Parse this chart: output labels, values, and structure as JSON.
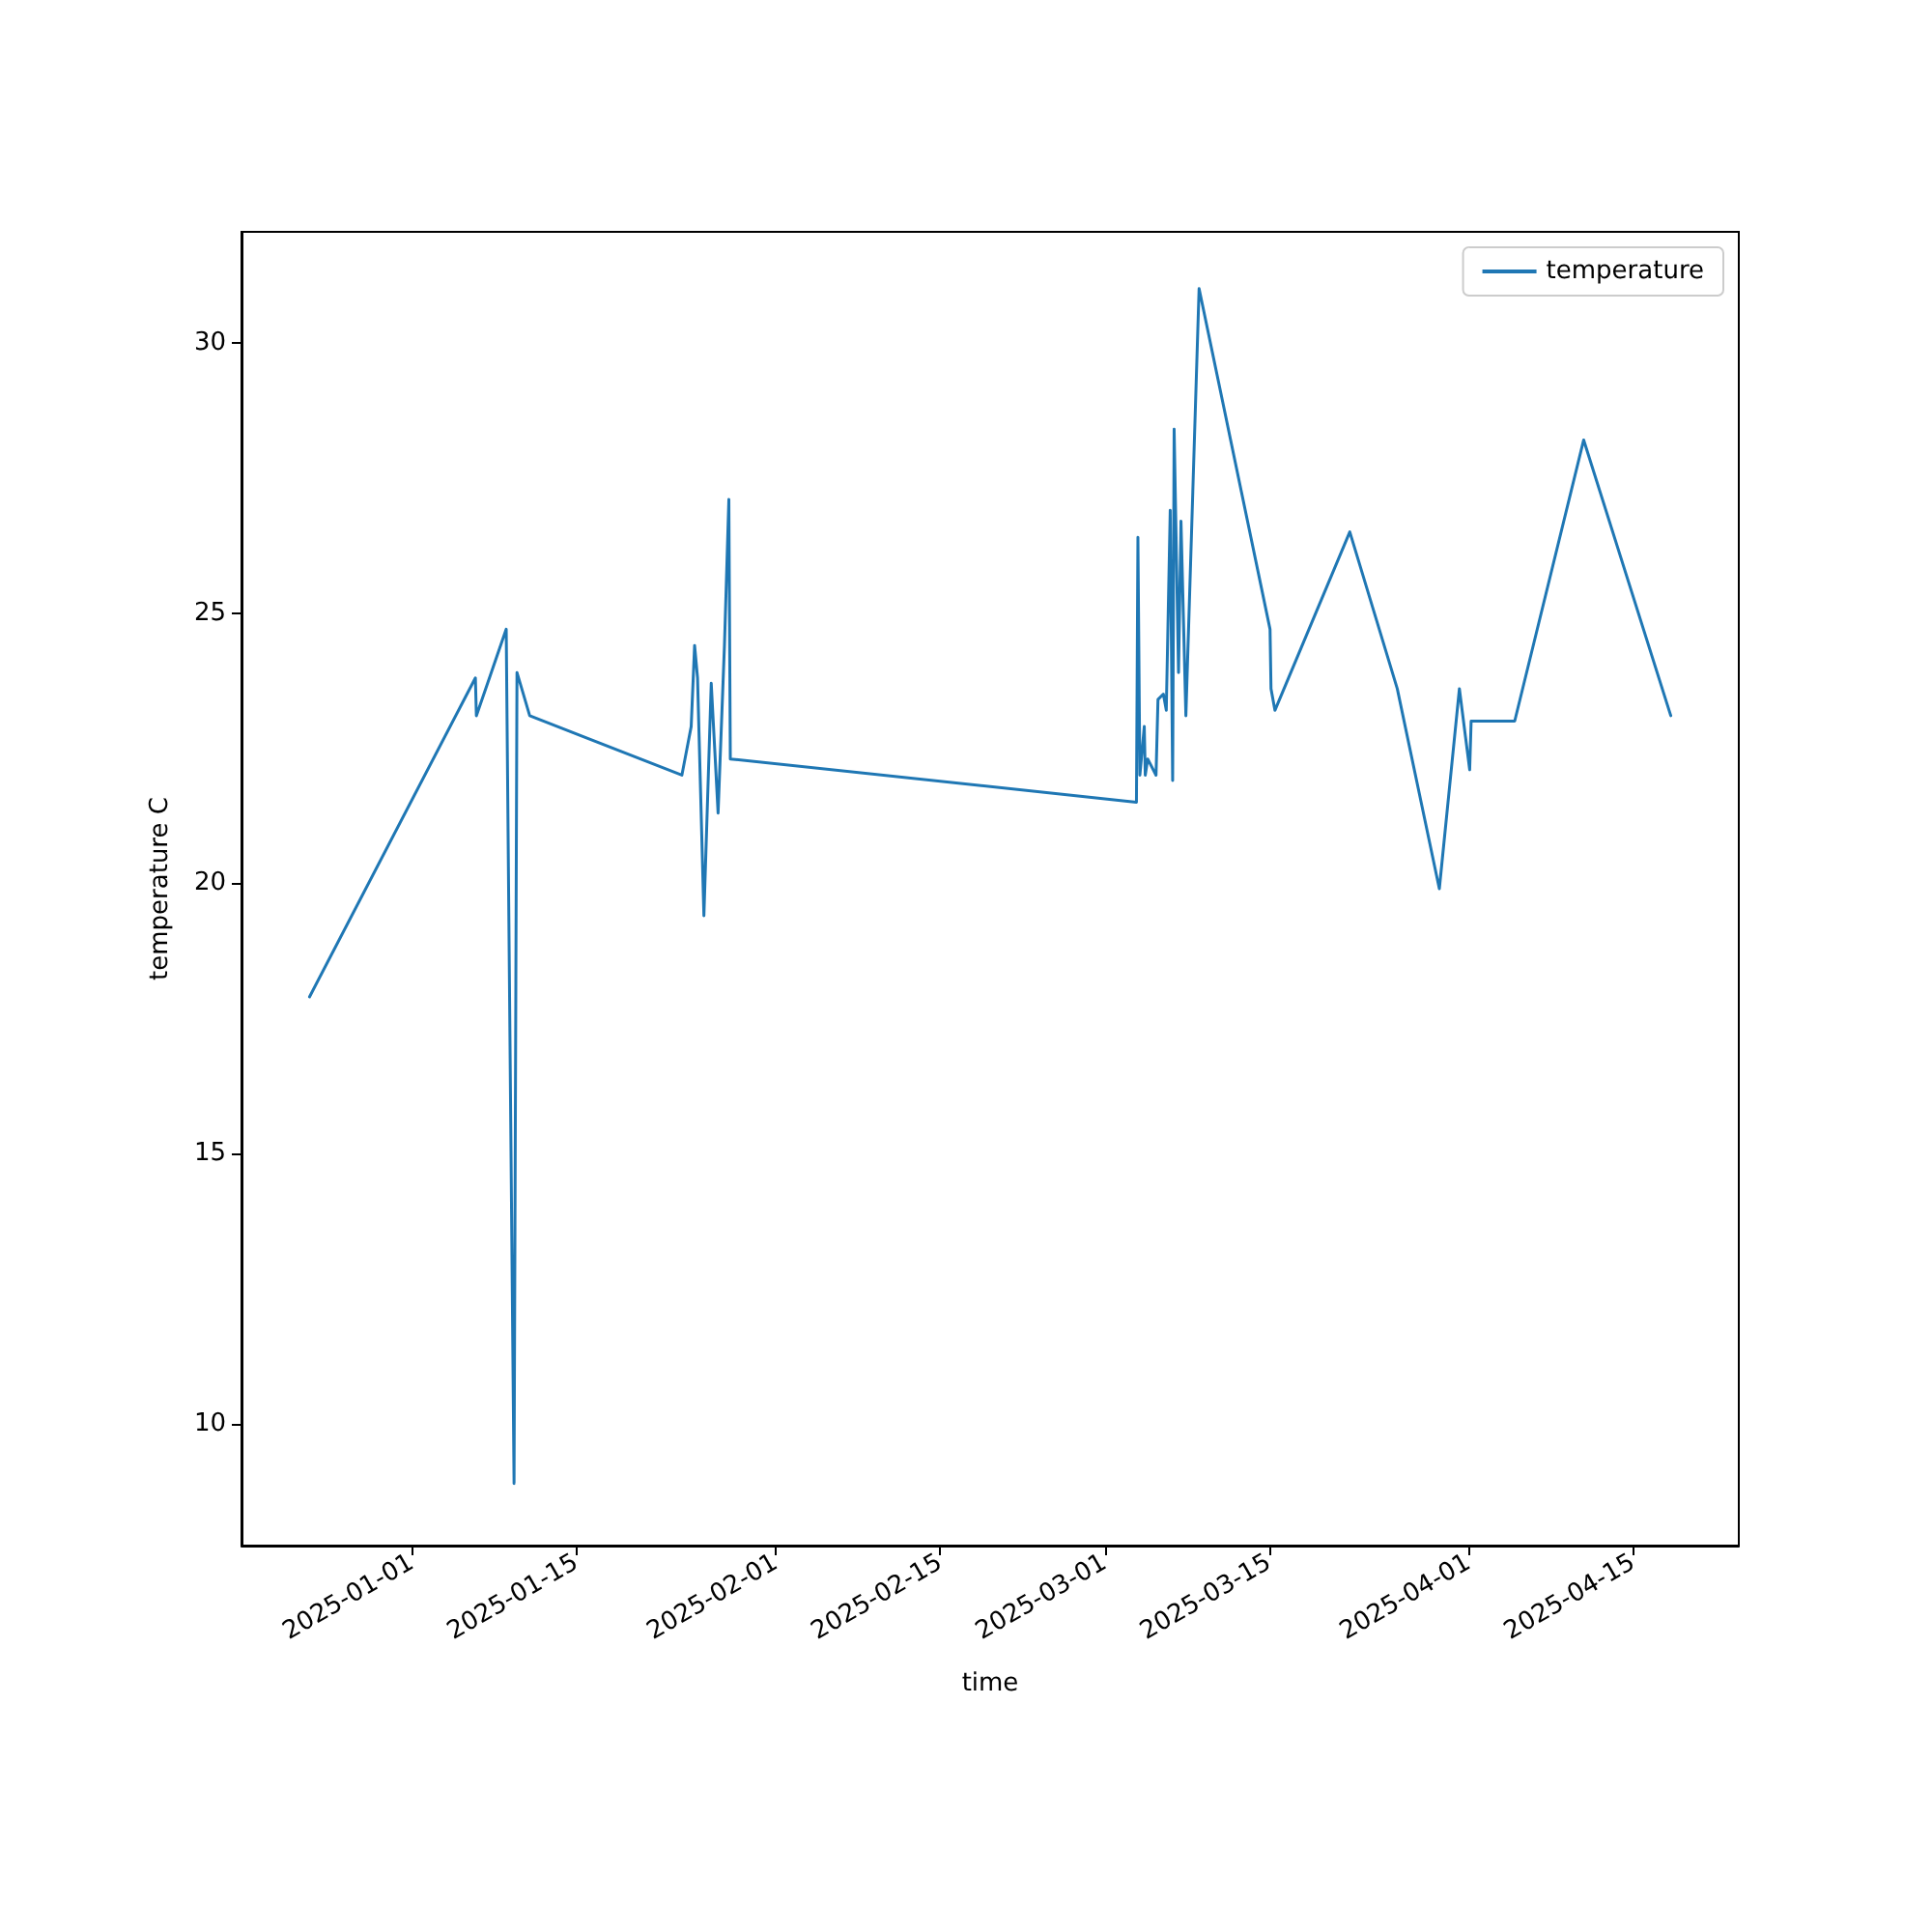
{
  "chart_data": {
    "type": "line",
    "xlabel": "time",
    "ylabel": "temperature C",
    "legend": "top right",
    "grid": false,
    "xlim": [
      "2024-12-17T12:00",
      "2025-04-24T00:00"
    ],
    "xticks": [
      "2025-01-01",
      "2025-01-15",
      "2025-02-01",
      "2025-02-15",
      "2025-03-01",
      "2025-03-15",
      "2025-04-01",
      "2025-04-15"
    ],
    "ylim": [
      7.75,
      32.05
    ],
    "yticks": [
      10,
      15,
      20,
      25,
      30
    ],
    "series": [
      {
        "name": "temperature",
        "color": "#1f77b4",
        "x": [
          "2024-12-23T07:00",
          "2025-01-06T10:00",
          "2025-01-06T12:00",
          "2025-01-09T01:00",
          "2025-01-09T17:00",
          "2025-01-09T23:00",
          "2025-01-11T01:00",
          "2025-01-24T00:00",
          "2025-01-24T19:00",
          "2025-01-25T02:00",
          "2025-01-25T08:00",
          "2025-01-25T21:00",
          "2025-01-26T12:00",
          "2025-01-27T02:00",
          "2025-01-27T15:00",
          "2025-01-28T00:00",
          "2025-01-28T03:00",
          "2025-03-03T17:00",
          "2025-03-03T20:00",
          "2025-03-04T00:00",
          "2025-03-04T09:00",
          "2025-03-04T11:00",
          "2025-03-04T16:00",
          "2025-03-05T09:00",
          "2025-03-05T13:00",
          "2025-03-06T00:00",
          "2025-03-06T06:00",
          "2025-03-06T14:00",
          "2025-03-06T19:00",
          "2025-03-06T22:00",
          "2025-03-07T07:00",
          "2025-03-07T12:00",
          "2025-03-07T22:00",
          "2025-03-09T01:00",
          "2025-03-15T02:00",
          "2025-03-15T04:00",
          "2025-03-15T12:00",
          "2025-03-21T21:00",
          "2025-03-25T22:00",
          "2025-03-29T12:00",
          "2025-03-31T05:00",
          "2025-04-01T02:00",
          "2025-04-01T05:00",
          "2025-04-04T22:00",
          "2025-04-10T19:00",
          "2025-04-18T05:00"
        ],
        "values": [
          17.9,
          23.8,
          23.1,
          24.7,
          8.9,
          23.9,
          23.1,
          22.0,
          22.9,
          24.4,
          23.8,
          19.4,
          23.7,
          21.3,
          24.4,
          27.1,
          22.3,
          21.5,
          26.4,
          22.0,
          22.9,
          22.0,
          22.3,
          22.0,
          23.4,
          23.5,
          23.2,
          26.9,
          21.9,
          28.4,
          23.9,
          26.7,
          23.1,
          31.0,
          24.7,
          23.6,
          23.2,
          26.5,
          23.6,
          19.9,
          23.6,
          22.1,
          23.0,
          23.0,
          28.2,
          23.1
        ]
      }
    ]
  }
}
